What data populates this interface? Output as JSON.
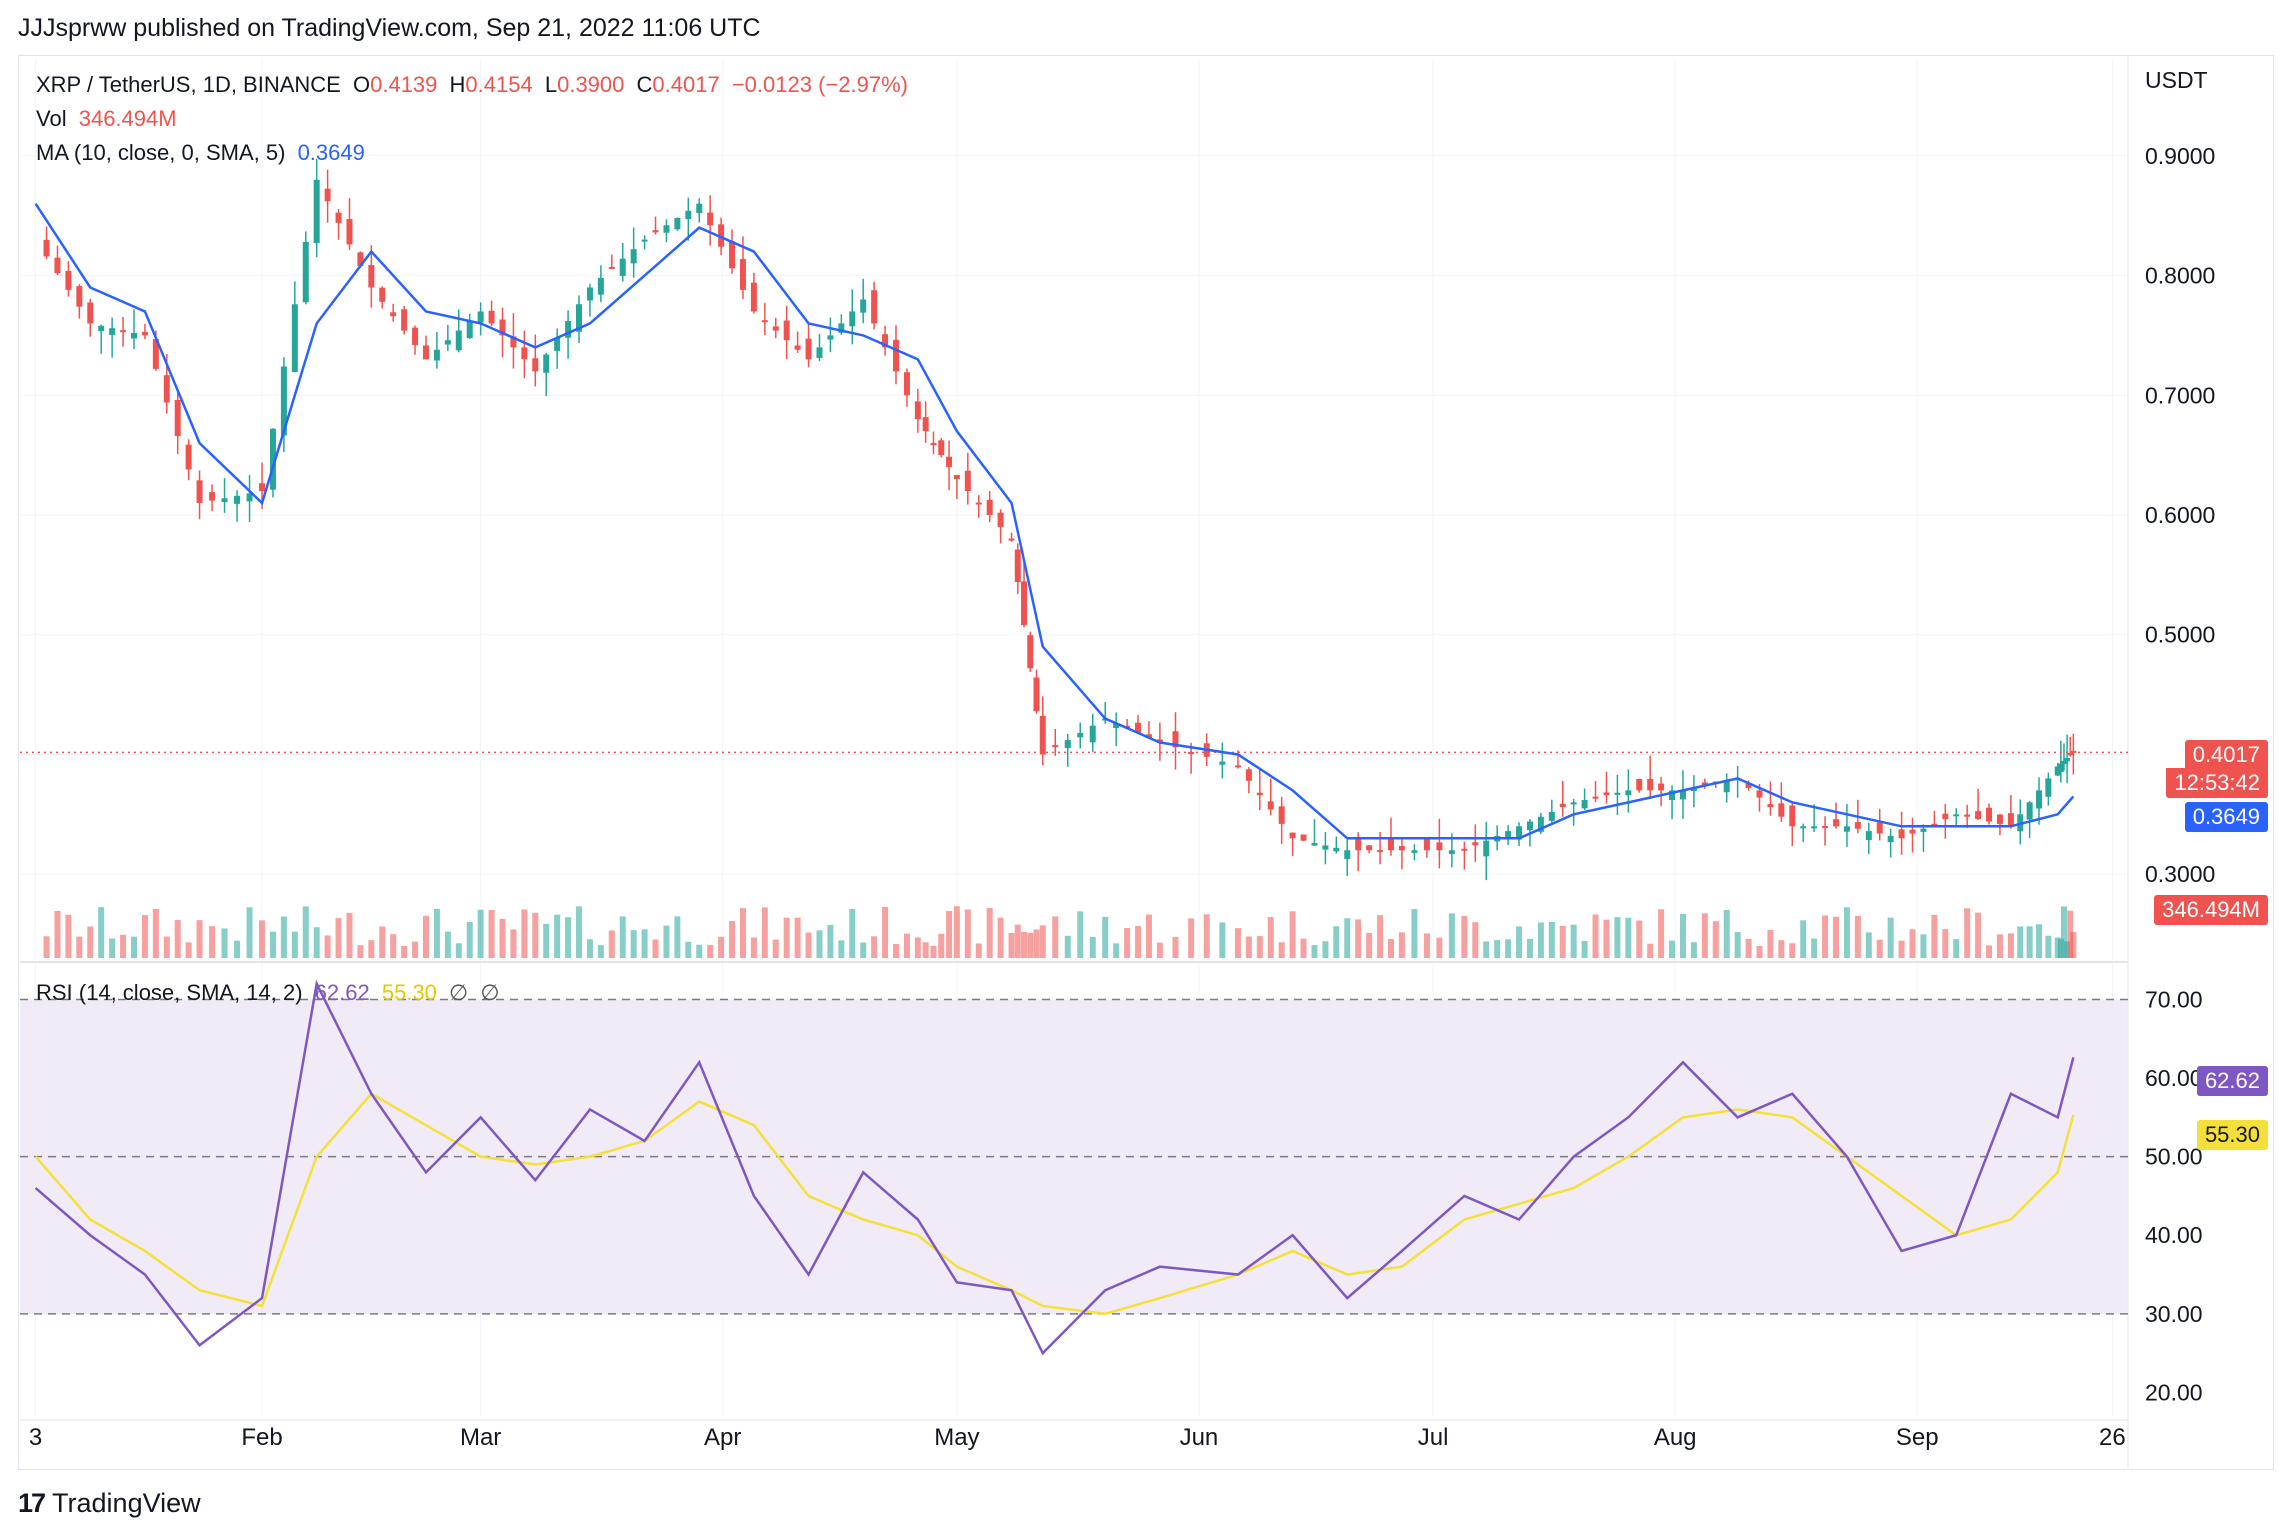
{
  "header": {
    "published": "JJJsprww published on TradingView.com, Sep 21, 2022 11:06 UTC"
  },
  "legend": {
    "symbol": "XRP / TetherUS, 1D, BINANCE",
    "o_label": "O",
    "o": "0.4139",
    "h_label": "H",
    "h": "0.4154",
    "l_label": "L",
    "l": "0.3900",
    "c_label": "C",
    "c": "0.4017",
    "chg": "−0.0123 (−2.97%)",
    "vol_label": "Vol",
    "vol": "346.494M",
    "ma_label": "MA (10, close, 0, SMA, 5)",
    "ma": "0.3649",
    "rsi_label": "RSI (14, close, SMA, 14, 2)",
    "rsi": "62.62",
    "rsi_ma": "55.30",
    "rsi_extra1": "∅",
    "rsi_extra2": "∅"
  },
  "price_axis": {
    "currency": "USDT",
    "ticks": [
      "0.9000",
      "0.8000",
      "0.7000",
      "0.6000",
      "0.5000",
      "0.3000"
    ],
    "last_price_tag": "0.4017",
    "countdown_tag": "12:53:42",
    "ma_tag": "0.3649",
    "vol_tag": "346.494M"
  },
  "rsi_axis": {
    "ticks": [
      "70.00",
      "60.00",
      "50.00",
      "40.00",
      "30.00",
      "20.00"
    ],
    "rsi_tag": "62.62",
    "rsi_ma_tag": "55.30"
  },
  "time_axis": {
    "labels": [
      "3",
      "Feb",
      "Mar",
      "Apr",
      "May",
      "Jun",
      "Jul",
      "Aug",
      "Sep",
      "26"
    ]
  },
  "colors": {
    "up": "#26a69a",
    "down": "#ef5350",
    "ma": "#2962ff",
    "rsi": "#7e57c2",
    "rsi_ma": "#f5e03b",
    "rsi_band": "#ede7f6"
  },
  "footer": {
    "brand": "TradingView"
  },
  "chart_data": {
    "type": "line",
    "title": "XRP / TetherUS, 1D, BINANCE",
    "x": [
      "2022-01-03",
      "2022-01-10",
      "2022-01-17",
      "2022-01-24",
      "2022-02-01",
      "2022-02-08",
      "2022-02-15",
      "2022-02-22",
      "2022-03-01",
      "2022-03-08",
      "2022-03-15",
      "2022-03-22",
      "2022-03-29",
      "2022-04-05",
      "2022-04-12",
      "2022-04-19",
      "2022-04-26",
      "2022-05-01",
      "2022-05-08",
      "2022-05-12",
      "2022-05-20",
      "2022-05-27",
      "2022-06-06",
      "2022-06-13",
      "2022-06-20",
      "2022-06-27",
      "2022-07-05",
      "2022-07-12",
      "2022-07-19",
      "2022-07-26",
      "2022-08-02",
      "2022-08-09",
      "2022-08-16",
      "2022-08-23",
      "2022-08-30",
      "2022-09-06",
      "2022-09-13",
      "2022-09-19",
      "2022-09-21"
    ],
    "series": [
      {
        "name": "XRP / TetherUS",
        "values": [
          0.83,
          0.76,
          0.75,
          0.61,
          0.62,
          0.88,
          0.79,
          0.73,
          0.77,
          0.72,
          0.79,
          0.83,
          0.86,
          0.77,
          0.73,
          0.78,
          0.68,
          0.63,
          0.58,
          0.4,
          0.43,
          0.41,
          0.39,
          0.33,
          0.32,
          0.32,
          0.32,
          0.34,
          0.36,
          0.37,
          0.37,
          0.38,
          0.34,
          0.34,
          0.33,
          0.35,
          0.34,
          0.39,
          0.4017
        ]
      },
      {
        "name": "MA (10, close, 0, SMA, 5)",
        "values": [
          0.86,
          0.79,
          0.77,
          0.66,
          0.61,
          0.76,
          0.82,
          0.77,
          0.76,
          0.74,
          0.76,
          0.8,
          0.84,
          0.82,
          0.76,
          0.75,
          0.73,
          0.67,
          0.61,
          0.49,
          0.43,
          0.41,
          0.4,
          0.37,
          0.33,
          0.33,
          0.33,
          0.33,
          0.35,
          0.36,
          0.37,
          0.38,
          0.36,
          0.35,
          0.34,
          0.34,
          0.34,
          0.35,
          0.3649
        ]
      }
    ],
    "rsi": {
      "name": "RSI (14, close, SMA, 14, 2)",
      "values": [
        46,
        40,
        35,
        26,
        32,
        72,
        58,
        48,
        55,
        47,
        56,
        52,
        62,
        45,
        35,
        48,
        42,
        34,
        33,
        25,
        33,
        36,
        35,
        40,
        32,
        38,
        45,
        42,
        50,
        55,
        62,
        55,
        58,
        50,
        38,
        40,
        58,
        55,
        62.62
      ],
      "ma_values": [
        50,
        42,
        38,
        33,
        31,
        50,
        58,
        54,
        50,
        49,
        50,
        52,
        57,
        54,
        45,
        42,
        40,
        36,
        33,
        31,
        30,
        32,
        35,
        38,
        35,
        36,
        42,
        44,
        46,
        50,
        55,
        56,
        55,
        50,
        45,
        40,
        42,
        48,
        55.3
      ],
      "bands": [
        30,
        70
      ],
      "ylim": [
        17,
        74
      ]
    },
    "ylim": [
      0.23,
      0.98
    ],
    "last_price": 0.4017,
    "grid": true
  }
}
